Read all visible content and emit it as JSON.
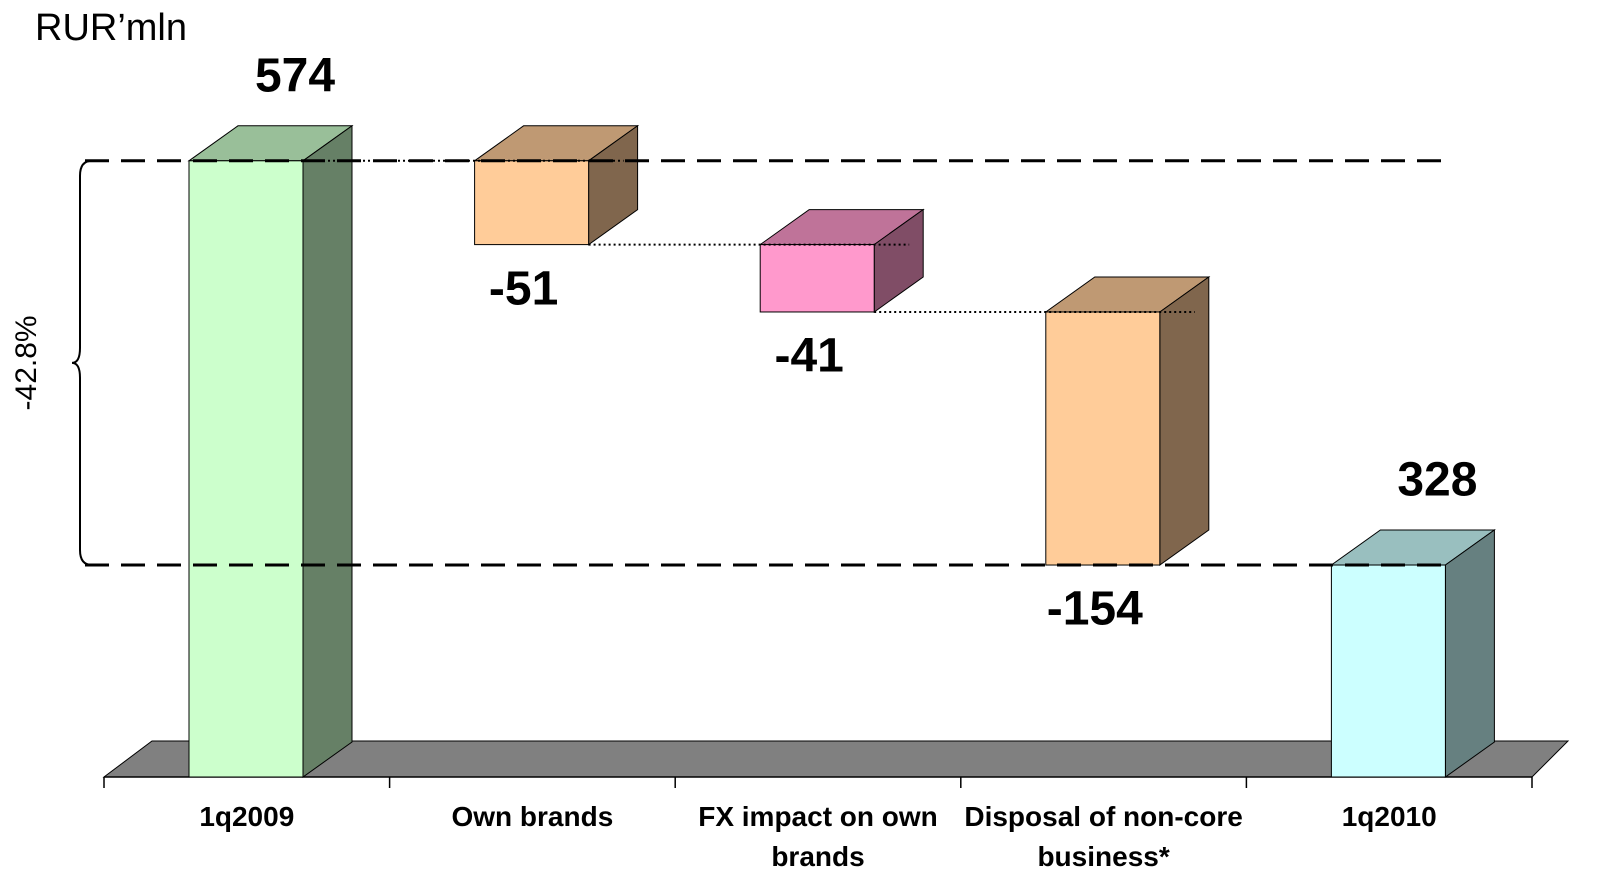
{
  "chart_data": {
    "type": "waterfall",
    "title": "RUR’mln",
    "categories": [
      "1q2009",
      "Own brands",
      "FX impact on own brands",
      "Disposal of non-core business*",
      "1q2010"
    ],
    "values": [
      574,
      -51,
      -41,
      -154,
      328
    ],
    "kinds": [
      "total",
      "delta",
      "delta",
      "delta",
      "total"
    ],
    "colors": [
      "#ccffcc",
      "#ffcc99",
      "#ff99cc",
      "#ffcc99",
      "#ccffff"
    ],
    "ylim": [
      199,
      611
    ],
    "annotation": "-42.8%"
  }
}
